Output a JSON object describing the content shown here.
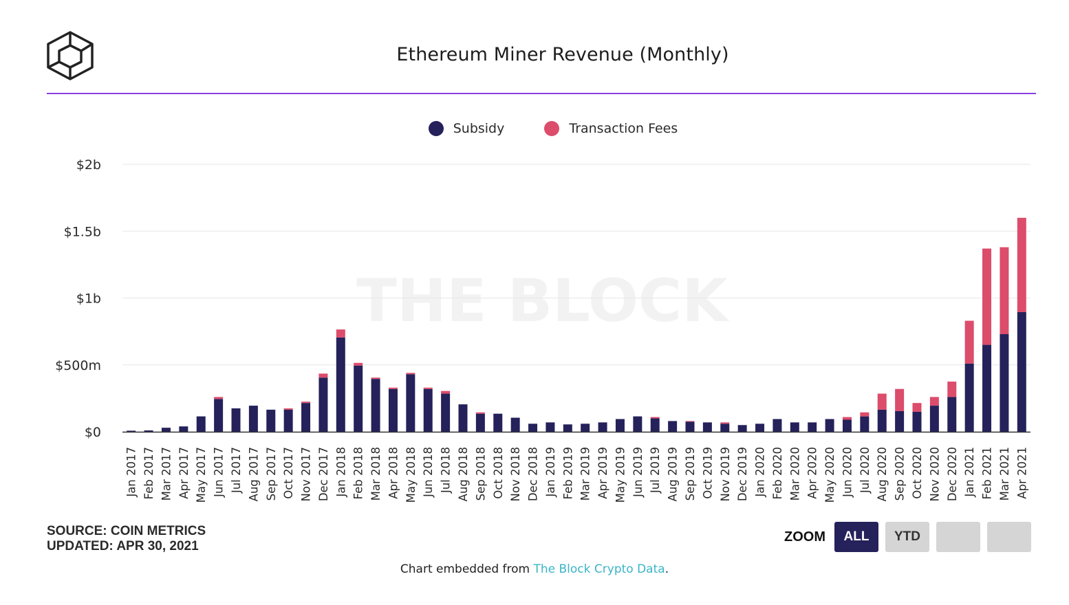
{
  "title": "Ethereum Miner Revenue (Monthly)",
  "watermark": "THE BLOCK",
  "colors": {
    "subsidy": "#25215a",
    "fees": "#dc4c6b",
    "accent": "#8b3ee2",
    "link": "#3ab4c6"
  },
  "legend": [
    {
      "name": "Subsidy",
      "color": "#25215a"
    },
    {
      "name": "Transaction Fees",
      "color": "#dc4c6b"
    }
  ],
  "chart_data": {
    "type": "bar",
    "stacked": true,
    "title": "Ethereum Miner Revenue (Monthly)",
    "xlabel": "",
    "ylabel": "",
    "ylim": [
      0,
      2000000000
    ],
    "yticks": [
      {
        "value": 0,
        "label": "$0"
      },
      {
        "value": 500000000,
        "label": "$500m"
      },
      {
        "value": 1000000000,
        "label": "$1b"
      },
      {
        "value": 1500000000,
        "label": "$1.5b"
      },
      {
        "value": 2000000000,
        "label": "$2b"
      }
    ],
    "grid": true,
    "legend_position": "top-center",
    "categories": [
      "Jan 2017",
      "Feb 2017",
      "Mar 2017",
      "Apr 2017",
      "May 2017",
      "Jun 2017",
      "Jul 2017",
      "Aug 2017",
      "Sep 2017",
      "Oct 2017",
      "Nov 2017",
      "Dec 2017",
      "Jan 2018",
      "Feb 2018",
      "Mar 2018",
      "Apr 2018",
      "May 2018",
      "Jun 2018",
      "Jul 2018",
      "Aug 2018",
      "Sep 2018",
      "Oct 2018",
      "Nov 2018",
      "Dec 2018",
      "Jan 2019",
      "Feb 2019",
      "Mar 2019",
      "Apr 2019",
      "May 2019",
      "Jun 2019",
      "Jul 2019",
      "Aug 2019",
      "Sep 2019",
      "Oct 2019",
      "Nov 2019",
      "Dec 2019",
      "Jan 2020",
      "Feb 2020",
      "Mar 2020",
      "Apr 2020",
      "May 2020",
      "Jun 2020",
      "Jul 2020",
      "Aug 2020",
      "Sep 2020",
      "Oct 2020",
      "Nov 2020",
      "Dec 2020",
      "Jan 2021",
      "Feb 2021",
      "Mar 2021",
      "Apr 2021"
    ],
    "series": [
      {
        "name": "Subsidy",
        "values": [
          8000000,
          10000000,
          30000000,
          40000000,
          115000000,
          245000000,
          175000000,
          195000000,
          165000000,
          165000000,
          215000000,
          405000000,
          705000000,
          495000000,
          395000000,
          320000000,
          430000000,
          320000000,
          285000000,
          205000000,
          135000000,
          135000000,
          105000000,
          60000000,
          70000000,
          55000000,
          60000000,
          70000000,
          95000000,
          115000000,
          100000000,
          80000000,
          75000000,
          70000000,
          60000000,
          50000000,
          60000000,
          95000000,
          70000000,
          70000000,
          95000000,
          90000000,
          115000000,
          165000000,
          155000000,
          150000000,
          195000000,
          260000000,
          510000000,
          650000000,
          730000000,
          895000000
        ]
      },
      {
        "name": "Transaction Fees",
        "values": [
          0,
          0,
          0,
          0,
          0,
          15000000,
          0,
          0,
          0,
          10000000,
          10000000,
          30000000,
          60000000,
          20000000,
          10000000,
          10000000,
          10000000,
          10000000,
          20000000,
          0,
          10000000,
          0,
          0,
          0,
          0,
          0,
          0,
          0,
          0,
          0,
          10000000,
          0,
          5000000,
          0,
          10000000,
          0,
          0,
          0,
          0,
          0,
          0,
          20000000,
          30000000,
          120000000,
          165000000,
          65000000,
          65000000,
          115000000,
          320000000,
          720000000,
          650000000,
          705000000
        ]
      }
    ]
  },
  "footer": {
    "source": "SOURCE: COIN METRICS",
    "updated": "UPDATED: APR 30, 2021"
  },
  "zoom": {
    "label": "ZOOM",
    "buttons": [
      {
        "label": "ALL",
        "active": true
      },
      {
        "label": "YTD",
        "active": false
      },
      {
        "label": "",
        "active": false
      },
      {
        "label": "",
        "active": false
      }
    ]
  },
  "embed": {
    "prefix": "Chart embedded from ",
    "link_text": "The Block Crypto Data",
    "suffix": "."
  }
}
